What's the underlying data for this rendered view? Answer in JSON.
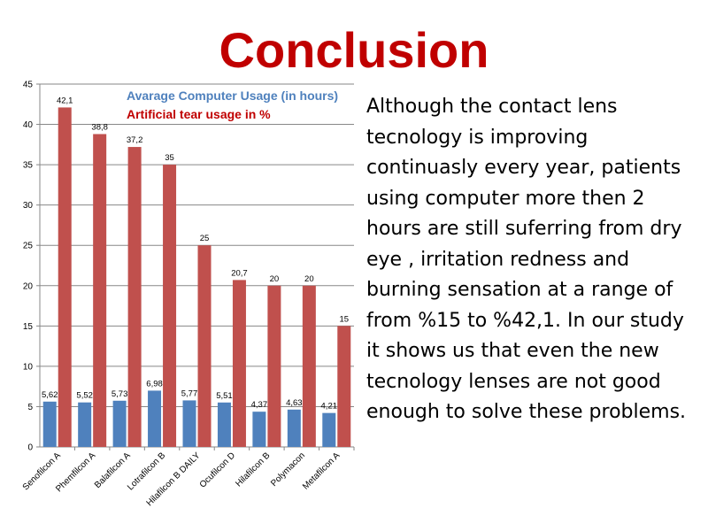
{
  "slide": {
    "title": "Conclusion",
    "body": "Although the contact lens tecnology is improving continuasly every year, patients using computer more then 2 hours are still suferring from dry eye , irritation redness and burning sensation at a range of  from %15 to %42,1. In our study it shows us that even the new tecnology lenses are not good enough to solve these problems."
  },
  "chart_data": {
    "type": "bar",
    "categories": [
      "Senofilcon A",
      "Phemfilcon A",
      "Balafilcon A",
      "Lotrafilcon B",
      "Hilafilcon B DAILY",
      "Ocufilcon D",
      "Hilafilcon B",
      "Polymacon",
      "Metafilcon  A"
    ],
    "series": [
      {
        "name": "Avarage Computer Usage (in hours)",
        "color": "#4f81bd",
        "values": [
          5.62,
          5.52,
          5.73,
          6.98,
          5.77,
          5.51,
          4.37,
          4.63,
          4.21
        ],
        "labels": [
          "5,62",
          "5,52",
          "5,73",
          "6,98",
          "5,77",
          "5,51",
          "4,37",
          "4,63",
          "4,21"
        ]
      },
      {
        "name": "Artificial tear usage in %",
        "color": "#c0504d",
        "values": [
          42.1,
          38.8,
          37.2,
          35,
          25,
          20.7,
          20,
          20,
          15
        ],
        "labels": [
          "42,1",
          "38,8",
          "37,2",
          "35",
          "25",
          "20,7",
          "20",
          "20",
          "15"
        ]
      }
    ],
    "ylim": [
      0,
      45
    ],
    "yticks": [
      0,
      5,
      10,
      15,
      20,
      25,
      30,
      35,
      40,
      45
    ],
    "grid": true,
    "legend_position": "top-right",
    "legend_colors": [
      "#4f81bd",
      "#c00000"
    ]
  }
}
